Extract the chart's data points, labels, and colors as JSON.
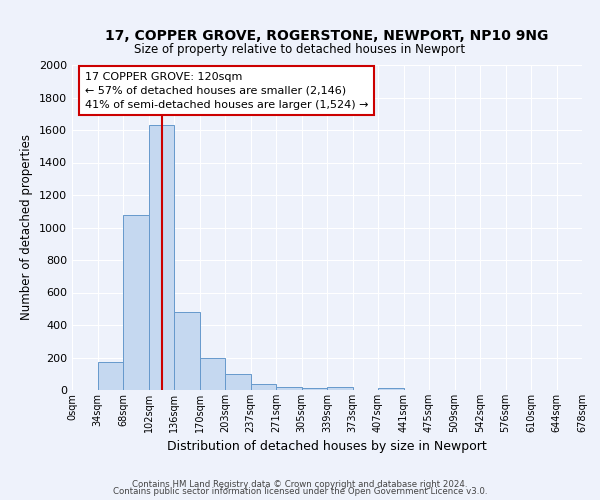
{
  "title_line1": "17, COPPER GROVE, ROGERSTONE, NEWPORT, NP10 9NG",
  "title_line2": "Size of property relative to detached houses in Newport",
  "xlabel": "Distribution of detached houses by size in Newport",
  "ylabel": "Number of detached properties",
  "bin_labels": [
    "0sqm",
    "34sqm",
    "68sqm",
    "102sqm",
    "136sqm",
    "170sqm",
    "203sqm",
    "237sqm",
    "271sqm",
    "305sqm",
    "339sqm",
    "373sqm",
    "407sqm",
    "441sqm",
    "475sqm",
    "509sqm",
    "542sqm",
    "576sqm",
    "610sqm",
    "644sqm",
    "678sqm"
  ],
  "bar_heights": [
    0,
    170,
    1080,
    1630,
    480,
    200,
    100,
    40,
    20,
    15,
    20,
    0,
    15,
    0,
    0,
    0,
    0,
    0,
    0,
    0,
    0
  ],
  "bar_color": "#c5d8f0",
  "bar_edge_color": "#6699cc",
  "red_line_x": 120,
  "annotation_text": "17 COPPER GROVE: 120sqm\n← 57% of detached houses are smaller (2,146)\n41% of semi-detached houses are larger (1,524) →",
  "annotation_box_color": "#ffffff",
  "annotation_box_edge_color": "#cc0000",
  "red_line_color": "#cc0000",
  "background_color": "#eef2fb",
  "grid_color": "#ffffff",
  "ylim": [
    0,
    2000
  ],
  "yticks": [
    0,
    200,
    400,
    600,
    800,
    1000,
    1200,
    1400,
    1600,
    1800,
    2000
  ],
  "footnote_line1": "Contains HM Land Registry data © Crown copyright and database right 2024.",
  "footnote_line2": "Contains public sector information licensed under the Open Government Licence v3.0."
}
